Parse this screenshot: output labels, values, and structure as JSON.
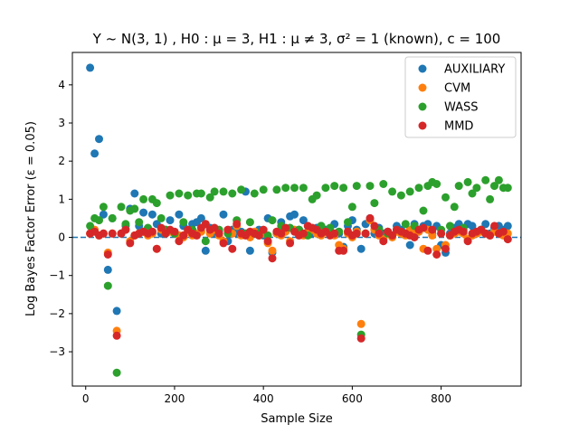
{
  "chart_data": {
    "type": "scatter",
    "title": "Y ~ N(3, 1) , H0 : μ = 3, H1 : μ ≠ 3, σ² = 1 (known), c = 100",
    "xlabel": "Sample Size",
    "ylabel": "Log Bayes Factor Error (ε = 0.05)",
    "xlim": [
      -30,
      980
    ],
    "ylim": [
      -3.9,
      4.85
    ],
    "xticks": [
      0,
      200,
      400,
      600,
      800
    ],
    "yticks": [
      -3,
      -2,
      -1,
      0,
      1,
      2,
      3,
      4
    ],
    "grid": false,
    "legend_position": "top-right",
    "reference_line": {
      "y": 0,
      "style": "dashed",
      "color": "#1f77b4"
    },
    "series": [
      {
        "name": "AUXILIARY",
        "color": "#1f77b4",
        "x": [
          10,
          20,
          30,
          40,
          50,
          60,
          70,
          80,
          90,
          100,
          110,
          120,
          130,
          140,
          150,
          160,
          170,
          180,
          190,
          200,
          210,
          220,
          230,
          240,
          250,
          260,
          270,
          280,
          290,
          300,
          310,
          320,
          330,
          340,
          350,
          360,
          370,
          380,
          390,
          400,
          410,
          420,
          430,
          440,
          450,
          460,
          470,
          480,
          490,
          500,
          510,
          520,
          530,
          540,
          550,
          560,
          570,
          580,
          590,
          600,
          610,
          620,
          630,
          640,
          650,
          660,
          670,
          680,
          690,
          700,
          710,
          720,
          730,
          740,
          750,
          760,
          770,
          780,
          790,
          800,
          810,
          820,
          830,
          840,
          850,
          860,
          870,
          880,
          890,
          900,
          910,
          920,
          930,
          940,
          950
        ],
        "y": [
          4.45,
          2.2,
          2.58,
          0.6,
          -0.85,
          0.5,
          -1.93,
          0.1,
          0.3,
          0.75,
          1.15,
          0.3,
          0.65,
          0.1,
          0.6,
          0.35,
          0.1,
          0.2,
          0.45,
          0.1,
          0.6,
          0.3,
          0.15,
          0.35,
          0.4,
          0.5,
          -0.35,
          0.25,
          0.1,
          0.15,
          0.6,
          -0.1,
          0.2,
          0.1,
          0.15,
          1.2,
          -0.35,
          0.1,
          0.2,
          0.05,
          0.5,
          -0.4,
          0.1,
          0.4,
          0.2,
          0.55,
          0.6,
          0.2,
          0.45,
          0.3,
          0.1,
          0.25,
          0.3,
          0.2,
          0.15,
          0.35,
          0.1,
          -0.25,
          0.3,
          0.45,
          0.2,
          -0.3,
          0.35,
          0.5,
          0.1,
          0.25,
          0.1,
          0.15,
          0.05,
          0.3,
          0.2,
          0.1,
          -0.2,
          0.35,
          0.15,
          0.3,
          0.35,
          0.1,
          0.3,
          -0.2,
          -0.4,
          0.1,
          0.25,
          0.35,
          0.2,
          0.35,
          0.3,
          0.1,
          0.2,
          0.35,
          0.1,
          0.25,
          0.3,
          0.2,
          0.3
        ]
      },
      {
        "name": "CVM",
        "color": "#ff7f0e",
        "x": [
          10,
          20,
          30,
          40,
          50,
          60,
          70,
          80,
          90,
          100,
          110,
          120,
          130,
          140,
          150,
          160,
          170,
          180,
          190,
          200,
          210,
          220,
          230,
          240,
          250,
          260,
          270,
          280,
          290,
          300,
          310,
          320,
          330,
          340,
          350,
          360,
          370,
          380,
          390,
          400,
          410,
          420,
          430,
          440,
          450,
          460,
          470,
          480,
          490,
          500,
          510,
          520,
          530,
          540,
          550,
          560,
          570,
          580,
          590,
          600,
          610,
          620,
          630,
          640,
          650,
          660,
          670,
          680,
          690,
          700,
          710,
          720,
          730,
          740,
          750,
          760,
          770,
          780,
          790,
          800,
          810,
          820,
          830,
          840,
          850,
          860,
          870,
          880,
          890,
          900,
          910,
          920,
          930,
          940,
          950
        ],
        "y": [
          0.1,
          0.2,
          0.05,
          0.1,
          -0.4,
          0.1,
          -2.45,
          0.1,
          0.2,
          -0.1,
          0.05,
          0.1,
          0.15,
          0.05,
          0.1,
          -0.3,
          0.2,
          0.1,
          0.15,
          0.1,
          0.05,
          0.0,
          0.15,
          0.05,
          0.1,
          0.15,
          0.35,
          0.1,
          0.2,
          0.05,
          -0.1,
          0.15,
          0.1,
          0.3,
          0.05,
          0.1,
          0.0,
          0.15,
          0.05,
          0.1,
          -0.15,
          -0.35,
          0.1,
          0.05,
          0.15,
          -0.1,
          0.2,
          0.1,
          0.05,
          0.15,
          0.2,
          0.1,
          0.05,
          0.15,
          0.1,
          0.05,
          -0.2,
          -0.3,
          0.1,
          0.0,
          0.15,
          -2.27,
          0.1,
          0.45,
          0.2,
          0.05,
          -0.05,
          0.1,
          0.0,
          0.15,
          0.1,
          0.05,
          0.2,
          0.1,
          0.15,
          -0.3,
          0.2,
          0.05,
          -0.3,
          0.1,
          -0.2,
          0.05,
          0.1,
          0.15,
          0.1,
          -0.05,
          0.05,
          0.1,
          0.15,
          0.1,
          0.05,
          0.15,
          0.1,
          0.05,
          0.1
        ]
      },
      {
        "name": "WASS",
        "color": "#2ca02c",
        "x": [
          10,
          20,
          30,
          40,
          50,
          60,
          70,
          80,
          90,
          100,
          110,
          120,
          130,
          140,
          150,
          160,
          170,
          180,
          190,
          200,
          210,
          220,
          230,
          240,
          250,
          260,
          270,
          280,
          290,
          300,
          310,
          320,
          330,
          340,
          350,
          360,
          370,
          380,
          390,
          400,
          410,
          420,
          430,
          440,
          450,
          460,
          470,
          480,
          490,
          500,
          510,
          520,
          530,
          540,
          550,
          560,
          570,
          580,
          590,
          600,
          610,
          620,
          630,
          640,
          650,
          660,
          670,
          680,
          690,
          700,
          710,
          720,
          730,
          740,
          750,
          760,
          770,
          780,
          790,
          800,
          810,
          820,
          830,
          840,
          850,
          860,
          870,
          880,
          890,
          900,
          910,
          920,
          930,
          940,
          950
        ],
        "y": [
          0.3,
          0.5,
          0.45,
          0.8,
          -1.27,
          0.5,
          -3.55,
          0.8,
          0.35,
          0.7,
          0.75,
          0.4,
          1.0,
          0.25,
          1.0,
          0.9,
          0.5,
          0.2,
          1.1,
          0.1,
          1.15,
          0.4,
          1.1,
          0.2,
          1.15,
          1.15,
          -0.1,
          1.05,
          1.2,
          0.2,
          1.2,
          0.1,
          1.15,
          0.45,
          1.25,
          0.1,
          0.4,
          1.15,
          0.1,
          1.25,
          0.05,
          0.45,
          1.25,
          0.3,
          1.3,
          0.25,
          1.3,
          0.2,
          1.3,
          0.05,
          1.0,
          1.1,
          0.3,
          1.3,
          0.25,
          1.35,
          0.15,
          1.3,
          0.4,
          0.8,
          1.35,
          -2.55,
          0.1,
          1.35,
          0.9,
          0.2,
          1.4,
          0.1,
          1.2,
          0.2,
          1.1,
          0.35,
          1.2,
          0.3,
          1.3,
          0.7,
          1.35,
          1.45,
          1.4,
          0.2,
          1.05,
          0.3,
          0.8,
          1.35,
          0.25,
          1.45,
          1.15,
          1.3,
          0.2,
          1.5,
          1.0,
          1.35,
          1.5,
          1.3,
          1.3
        ]
      },
      {
        "name": "MMD",
        "color": "#d62728",
        "x": [
          10,
          20,
          30,
          40,
          50,
          60,
          70,
          80,
          90,
          100,
          110,
          120,
          130,
          140,
          150,
          160,
          170,
          180,
          190,
          200,
          210,
          220,
          230,
          240,
          250,
          260,
          270,
          280,
          290,
          300,
          310,
          320,
          330,
          340,
          350,
          360,
          370,
          380,
          390,
          400,
          410,
          420,
          430,
          440,
          450,
          460,
          470,
          480,
          490,
          500,
          510,
          520,
          530,
          540,
          550,
          560,
          570,
          580,
          590,
          600,
          610,
          620,
          630,
          640,
          650,
          660,
          670,
          680,
          690,
          700,
          710,
          720,
          730,
          740,
          750,
          760,
          770,
          780,
          790,
          800,
          810,
          820,
          830,
          840,
          850,
          860,
          870,
          880,
          890,
          900,
          910,
          920,
          930,
          940,
          950
        ],
        "y": [
          0.1,
          0.15,
          0.05,
          0.1,
          -0.45,
          0.1,
          -2.58,
          0.1,
          0.2,
          -0.15,
          0.05,
          0.1,
          0.15,
          0.1,
          0.15,
          -0.3,
          0.25,
          0.1,
          0.2,
          0.15,
          -0.1,
          0.05,
          0.2,
          0.1,
          0.05,
          0.25,
          0.35,
          0.2,
          0.25,
          0.1,
          -0.15,
          0.2,
          -0.3,
          0.35,
          0.1,
          0.05,
          0.15,
          0.1,
          0.05,
          0.2,
          -0.1,
          -0.55,
          0.15,
          0.1,
          0.25,
          -0.15,
          0.15,
          0.05,
          0.1,
          0.3,
          0.25,
          0.2,
          0.1,
          0.15,
          0.05,
          0.1,
          -0.35,
          -0.35,
          0.15,
          0.05,
          0.1,
          -2.65,
          0.1,
          0.5,
          0.3,
          0.1,
          -0.1,
          0.15,
          0.05,
          0.2,
          0.15,
          0.1,
          0.05,
          0.0,
          0.2,
          0.25,
          -0.35,
          0.2,
          -0.45,
          0.1,
          -0.3,
          0.05,
          0.15,
          0.2,
          0.15,
          -0.1,
          0.1,
          0.15,
          0.2,
          0.1,
          0.05,
          0.3,
          0.1,
          0.15,
          -0.05
        ]
      }
    ]
  }
}
